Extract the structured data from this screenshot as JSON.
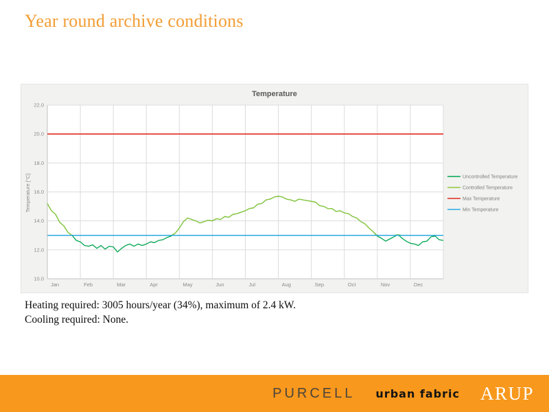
{
  "slide": {
    "title": "Year round archive conditions",
    "title_color": "#f29d35"
  },
  "notes": {
    "heating": "Heating required: 3005 hours/year (34%), maximum of 2.4 kW.",
    "cooling": "Cooling required: None."
  },
  "footer": {
    "bar_color": "#f8981d",
    "logos": [
      "PURCELL",
      "urban fabric",
      "ARUP"
    ]
  },
  "chart_data": {
    "type": "line",
    "title": "Temperature",
    "xlabel": "",
    "ylabel": "Temperature [°C]",
    "ylim": [
      10.0,
      22.0
    ],
    "grid": true,
    "legend_position": "right",
    "x_categories": [
      "Jan",
      "Feb",
      "Mar",
      "Apr",
      "May",
      "Jun",
      "Jul",
      "Aug",
      "Sep",
      "Oct",
      "Nov",
      "Dec"
    ],
    "x_step_months": 0.125,
    "y_ticks": [
      {
        "label": "22.0",
        "value": 22.0
      },
      {
        "label": "20.0",
        "value": 20.0
      },
      {
        "label": "18.0",
        "value": 18.0
      },
      {
        "label": "16.0",
        "value": 16.0
      },
      {
        "label": "14.0",
        "value": 14.0
      },
      {
        "label": "12.0",
        "value": 12.0
      },
      {
        "label": "10.0",
        "value": 10.0
      }
    ],
    "series": [
      {
        "name": "Uncontrolled Temperature",
        "color": "#00a550",
        "values": [
          15.2,
          14.7,
          14.45,
          13.9,
          13.65,
          13.2,
          13.0,
          12.65,
          12.55,
          12.3,
          12.25,
          12.35,
          12.1,
          12.3,
          12.05,
          12.25,
          12.2,
          11.85,
          12.1,
          12.3,
          12.4,
          12.25,
          12.4,
          12.3,
          12.4,
          12.55,
          12.5,
          12.65,
          12.7,
          12.85,
          12.95,
          13.15,
          13.5,
          13.95,
          14.2,
          14.1,
          14.0,
          13.85,
          13.95,
          14.05,
          14.0,
          14.15,
          14.1,
          14.3,
          14.25,
          14.45,
          14.5,
          14.6,
          14.7,
          14.85,
          14.9,
          15.15,
          15.2,
          15.45,
          15.5,
          15.65,
          15.7,
          15.65,
          15.5,
          15.45,
          15.35,
          15.5,
          15.45,
          15.4,
          15.35,
          15.3,
          15.05,
          15.0,
          14.85,
          14.85,
          14.65,
          14.7,
          14.55,
          14.5,
          14.3,
          14.2,
          13.95,
          13.8,
          13.5,
          13.25,
          12.95,
          12.8,
          12.6,
          12.75,
          12.9,
          13.05,
          12.8,
          12.6,
          12.45,
          12.4,
          12.3,
          12.55,
          12.6,
          12.9,
          12.95,
          12.7,
          12.65
        ]
      },
      {
        "name": "Controlled Temperature",
        "color": "#92c83e",
        "values": [
          15.2,
          14.7,
          14.45,
          13.9,
          13.65,
          13.2,
          13.0,
          13.0,
          13.0,
          13.0,
          13.0,
          13.0,
          13.0,
          13.0,
          13.0,
          13.0,
          13.0,
          13.0,
          13.0,
          13.0,
          13.0,
          13.0,
          13.0,
          13.0,
          13.0,
          13.0,
          13.0,
          13.0,
          13.0,
          13.0,
          13.0,
          13.15,
          13.5,
          13.95,
          14.2,
          14.1,
          14.0,
          13.85,
          13.95,
          14.05,
          14.0,
          14.15,
          14.1,
          14.3,
          14.25,
          14.45,
          14.5,
          14.6,
          14.7,
          14.85,
          14.9,
          15.15,
          15.2,
          15.45,
          15.5,
          15.65,
          15.7,
          15.65,
          15.5,
          15.45,
          15.35,
          15.5,
          15.45,
          15.4,
          15.35,
          15.3,
          15.05,
          15.0,
          14.85,
          14.85,
          14.65,
          14.7,
          14.55,
          14.5,
          14.3,
          14.2,
          13.95,
          13.8,
          13.5,
          13.25,
          13.0,
          13.0,
          13.0,
          13.0,
          13.0,
          13.05,
          13.0,
          13.0,
          13.0,
          13.0,
          13.0,
          13.0,
          13.0,
          13.0,
          13.0,
          13.0,
          13.0
        ]
      },
      {
        "name": "Max Temperature",
        "color": "#e02a20",
        "type": "hline",
        "value": 20.0
      },
      {
        "name": "Min Temperature",
        "color": "#2aa9e0",
        "type": "hline",
        "value": 13.0
      }
    ]
  }
}
